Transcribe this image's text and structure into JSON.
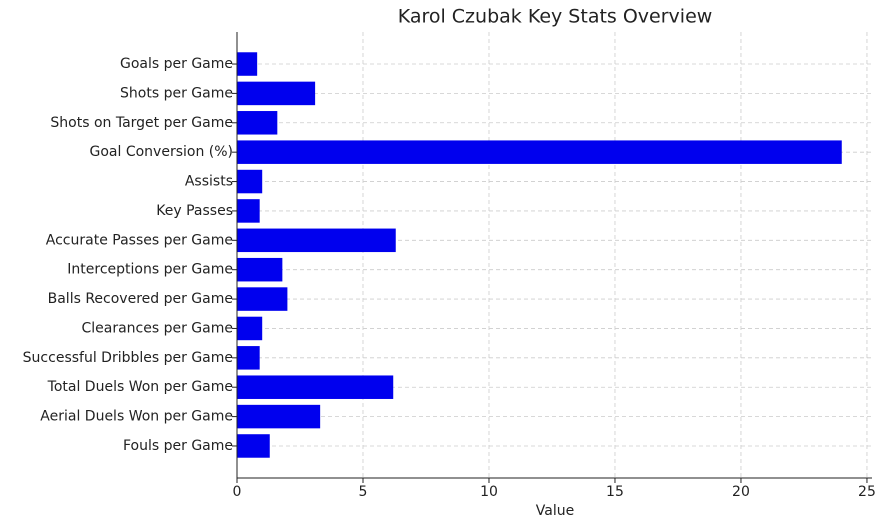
{
  "chart_data": {
    "type": "barh",
    "title": "Karol Czubak Key Stats Overview",
    "x_label": "Value",
    "categories": [
      "Goals per Game",
      "Shots per Game",
      "Shots on Target per Game",
      "Goal Conversion (%)",
      "Assists",
      "Key Passes",
      "Accurate Passes per Game",
      "Interceptions per Game",
      "Balls Recovered per Game",
      "Clearances per Game",
      "Successful Dribbles per Game",
      "Total Duels Won per Game",
      "Aerial Duels Won per Game",
      "Fouls per Game"
    ],
    "values": [
      0.8,
      3.1,
      1.6,
      24.0,
      1.0,
      0.9,
      6.3,
      1.8,
      2.0,
      1.0,
      0.9,
      6.2,
      3.3,
      1.3
    ],
    "color": "#0000ee",
    "xlim": [
      0,
      25.2
    ],
    "xticks": [
      0,
      5,
      10,
      15,
      20,
      25
    ],
    "grid": true
  }
}
